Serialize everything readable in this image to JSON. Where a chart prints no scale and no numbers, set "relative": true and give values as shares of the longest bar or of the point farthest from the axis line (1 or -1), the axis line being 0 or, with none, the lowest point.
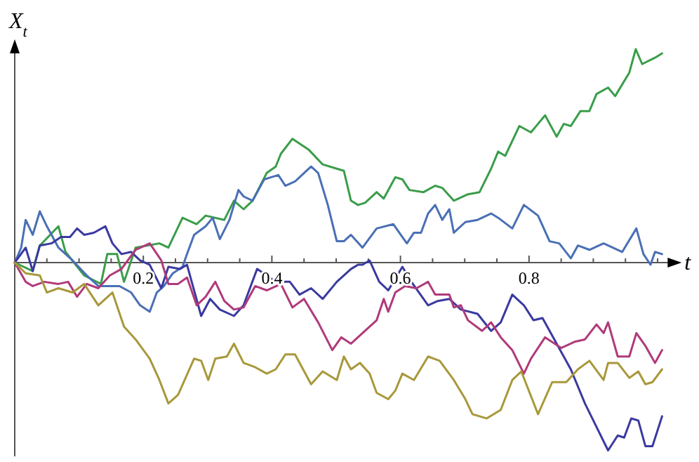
{
  "chart_data": {
    "type": "line",
    "relative": true,
    "xlabel": "t",
    "ylabel": "X$_{t}$",
    "xlim": [
      0,
      1.02
    ],
    "xticks": [
      {
        "value": 0.05,
        "label": null
      },
      {
        "value": 0.1,
        "label": null
      },
      {
        "value": 0.15,
        "label": null
      },
      0.2,
      {
        "value": 0.25,
        "label": null
      },
      {
        "value": 0.3,
        "label": null
      },
      {
        "value": 0.35,
        "label": null
      },
      0.4,
      {
        "value": 0.45,
        "label": null
      },
      {
        "value": 0.5,
        "label": null
      },
      {
        "value": 0.55,
        "label": null
      },
      0.6,
      {
        "value": 0.65,
        "label": null
      },
      {
        "value": 0.7,
        "label": null
      },
      {
        "value": 0.75,
        "label": null
      },
      0.8,
      {
        "value": 0.85,
        "label": null
      },
      {
        "value": 0.9,
        "label": null
      },
      {
        "value": 0.95,
        "label": null
      },
      {
        "value": 1.0,
        "label": null
      }
    ],
    "grid": false,
    "marker": "none",
    "line_style": "solid",
    "series": [
      {
        "color": "#3a9d4a",
        "x": [
          0,
          0.028,
          0.039,
          0.068,
          0.079,
          0.108,
          0.134,
          0.144,
          0.159,
          0.17,
          0.188,
          0.225,
          0.239,
          0.261,
          0.283,
          0.297,
          0.326,
          0.341,
          0.356,
          0.37,
          0.392,
          0.406,
          0.414,
          0.432,
          0.457,
          0.479,
          0.501,
          0.512,
          0.523,
          0.534,
          0.545,
          0.563,
          0.574,
          0.592,
          0.603,
          0.614,
          0.636,
          0.654,
          0.665,
          0.683,
          0.705,
          0.723,
          0.741,
          0.752,
          0.763,
          0.785,
          0.803,
          0.825,
          0.843,
          0.854,
          0.865,
          0.88,
          0.894,
          0.905,
          0.923,
          0.934,
          0.956,
          0.966,
          0.976,
          0.996,
          1.007
        ],
        "values": [
          0,
          -0.04,
          0.08,
          0.17,
          0.05,
          -0.06,
          -0.1,
          0.04,
          0.04,
          -0.09,
          0.07,
          0.09,
          0.07,
          0.21,
          0.18,
          0.22,
          0.2,
          0.29,
          0.25,
          0.29,
          0.42,
          0.45,
          0.51,
          0.58,
          0.53,
          0.46,
          0.44,
          0.43,
          0.29,
          0.27,
          0.28,
          0.33,
          0.3,
          0.4,
          0.39,
          0.34,
          0.33,
          0.36,
          0.35,
          0.29,
          0.32,
          0.33,
          0.44,
          0.52,
          0.5,
          0.64,
          0.61,
          0.69,
          0.59,
          0.65,
          0.64,
          0.71,
          0.71,
          0.79,
          0.82,
          0.78,
          0.89,
          1.0,
          0.93,
          0.96,
          0.98
        ]
      },
      {
        "color": "#4a6fb5",
        "x": [
          0,
          0.01,
          0.017,
          0.028,
          0.039,
          0.05,
          0.068,
          0.09,
          0.112,
          0.13,
          0.163,
          0.181,
          0.195,
          0.21,
          0.221,
          0.232,
          0.246,
          0.261,
          0.268,
          0.279,
          0.297,
          0.308,
          0.319,
          0.334,
          0.348,
          0.356,
          0.37,
          0.388,
          0.399,
          0.41,
          0.421,
          0.436,
          0.461,
          0.472,
          0.487,
          0.501,
          0.512,
          0.523,
          0.541,
          0.563,
          0.589,
          0.603,
          0.61,
          0.621,
          0.632,
          0.643,
          0.654,
          0.665,
          0.676,
          0.683,
          0.701,
          0.72,
          0.741,
          0.752,
          0.774,
          0.792,
          0.814,
          0.832,
          0.847,
          0.865,
          0.876,
          0.894,
          0.916,
          0.945,
          0.967,
          0.978,
          0.989,
          0.996,
          1.007
        ],
        "values": [
          0,
          0.07,
          0.2,
          0.13,
          0.24,
          0.17,
          0.07,
          0.01,
          -0.06,
          -0.11,
          -0.11,
          -0.14,
          -0.2,
          -0.23,
          -0.14,
          -0.11,
          -0.05,
          -0.02,
          0.04,
          0.13,
          0.17,
          0.21,
          0.11,
          0.2,
          0.34,
          0.31,
          0.29,
          0.39,
          0.4,
          0.41,
          0.36,
          0.38,
          0.45,
          0.42,
          0.27,
          0.1,
          0.1,
          0.13,
          0.07,
          0.16,
          0.18,
          0.12,
          0.09,
          0.14,
          0.14,
          0.23,
          0.27,
          0.2,
          0.25,
          0.14,
          0.19,
          0.2,
          0.23,
          0.21,
          0.16,
          0.27,
          0.22,
          0.1,
          0.09,
          0.02,
          0.08,
          0.06,
          0.09,
          0.05,
          0.16,
          0.04,
          -0.01,
          0.05,
          0.04
        ]
      },
      {
        "color": "#3a3aa0",
        "x": [
          0,
          0.017,
          0.028,
          0.039,
          0.057,
          0.072,
          0.086,
          0.097,
          0.108,
          0.123,
          0.141,
          0.152,
          0.166,
          0.181,
          0.195,
          0.21,
          0.228,
          0.239,
          0.257,
          0.268,
          0.29,
          0.304,
          0.319,
          0.341,
          0.356,
          0.377,
          0.392,
          0.406,
          0.428,
          0.443,
          0.461,
          0.479,
          0.501,
          0.523,
          0.534,
          0.541,
          0.552,
          0.567,
          0.581,
          0.603,
          0.617,
          0.643,
          0.658,
          0.676,
          0.694,
          0.72,
          0.741,
          0.756,
          0.774,
          0.792,
          0.807,
          0.821,
          0.843,
          0.865,
          0.887,
          0.905,
          0.923,
          0.938,
          0.948,
          0.959,
          0.97,
          0.981,
          0.992,
          1.007
        ],
        "values": [
          0,
          0.07,
          -0.04,
          0.08,
          0.09,
          0.12,
          0.12,
          0.16,
          0.13,
          0.14,
          0.17,
          0.09,
          0.04,
          0.05,
          0.01,
          -0.01,
          -0.12,
          -0.02,
          -0.03,
          -0.01,
          -0.25,
          -0.17,
          -0.22,
          -0.25,
          -0.2,
          -0.03,
          -0.06,
          -0.09,
          -0.09,
          -0.15,
          -0.12,
          -0.17,
          -0.09,
          -0.03,
          -0.01,
          -0.01,
          0.01,
          -0.09,
          -0.13,
          -0.02,
          -0.09,
          -0.2,
          -0.18,
          -0.17,
          -0.22,
          -0.24,
          -0.32,
          -0.28,
          -0.15,
          -0.2,
          -0.27,
          -0.26,
          -0.38,
          -0.5,
          -0.66,
          -0.77,
          -0.88,
          -0.81,
          -0.82,
          -0.73,
          -0.74,
          -0.86,
          -0.86,
          -0.72
        ]
      },
      {
        "color": "#b03a7a",
        "x": [
          0,
          0.017,
          0.028,
          0.046,
          0.068,
          0.083,
          0.097,
          0.112,
          0.13,
          0.148,
          0.166,
          0.188,
          0.21,
          0.228,
          0.239,
          0.254,
          0.268,
          0.283,
          0.297,
          0.312,
          0.326,
          0.341,
          0.356,
          0.374,
          0.392,
          0.414,
          0.432,
          0.45,
          0.472,
          0.494,
          0.508,
          0.523,
          0.541,
          0.563,
          0.574,
          0.581,
          0.592,
          0.607,
          0.625,
          0.643,
          0.654,
          0.676,
          0.683,
          0.694,
          0.705,
          0.727,
          0.741,
          0.756,
          0.774,
          0.792,
          0.803,
          0.825,
          0.85,
          0.872,
          0.887,
          0.905,
          0.916,
          0.923,
          0.938,
          0.956,
          0.967,
          0.981,
          0.996,
          1.007
        ],
        "values": [
          0,
          -0.09,
          -0.11,
          -0.09,
          -0.1,
          -0.09,
          -0.16,
          -0.1,
          -0.12,
          -0.06,
          -0.03,
          0.06,
          0.09,
          0.01,
          -0.1,
          -0.1,
          -0.07,
          -0.2,
          -0.16,
          -0.09,
          -0.18,
          -0.22,
          -0.21,
          -0.11,
          -0.13,
          -0.1,
          -0.21,
          -0.17,
          -0.28,
          -0.41,
          -0.35,
          -0.38,
          -0.33,
          -0.27,
          -0.17,
          -0.23,
          -0.14,
          -0.11,
          -0.12,
          -0.09,
          -0.15,
          -0.15,
          -0.21,
          -0.2,
          -0.27,
          -0.32,
          -0.28,
          -0.35,
          -0.41,
          -0.52,
          -0.45,
          -0.35,
          -0.4,
          -0.37,
          -0.36,
          -0.29,
          -0.33,
          -0.28,
          -0.44,
          -0.44,
          -0.33,
          -0.39,
          -0.47,
          -0.41
        ]
      },
      {
        "color": "#a8983a",
        "x": [
          0,
          0.017,
          0.039,
          0.05,
          0.068,
          0.09,
          0.108,
          0.13,
          0.152,
          0.17,
          0.188,
          0.21,
          0.225,
          0.239,
          0.254,
          0.279,
          0.29,
          0.301,
          0.312,
          0.33,
          0.341,
          0.356,
          0.374,
          0.392,
          0.406,
          0.421,
          0.436,
          0.461,
          0.479,
          0.501,
          0.512,
          0.523,
          0.537,
          0.552,
          0.563,
          0.581,
          0.592,
          0.603,
          0.621,
          0.643,
          0.661,
          0.683,
          0.701,
          0.712,
          0.734,
          0.756,
          0.774,
          0.788,
          0.814,
          0.836,
          0.858,
          0.876,
          0.894,
          0.916,
          0.923,
          0.938,
          0.956,
          0.97,
          0.981,
          0.992,
          1.007
        ],
        "values": [
          0,
          -0.05,
          -0.06,
          -0.14,
          -0.12,
          -0.14,
          -0.1,
          -0.2,
          -0.14,
          -0.3,
          -0.36,
          -0.45,
          -0.55,
          -0.66,
          -0.62,
          -0.45,
          -0.46,
          -0.55,
          -0.45,
          -0.44,
          -0.38,
          -0.47,
          -0.49,
          -0.52,
          -0.5,
          -0.43,
          -0.43,
          -0.57,
          -0.51,
          -0.55,
          -0.44,
          -0.5,
          -0.47,
          -0.52,
          -0.61,
          -0.64,
          -0.6,
          -0.52,
          -0.55,
          -0.44,
          -0.46,
          -0.55,
          -0.64,
          -0.71,
          -0.73,
          -0.69,
          -0.55,
          -0.51,
          -0.71,
          -0.56,
          -0.56,
          -0.5,
          -0.46,
          -0.55,
          -0.47,
          -0.47,
          -0.54,
          -0.51,
          -0.57,
          -0.56,
          -0.5
        ]
      }
    ]
  }
}
